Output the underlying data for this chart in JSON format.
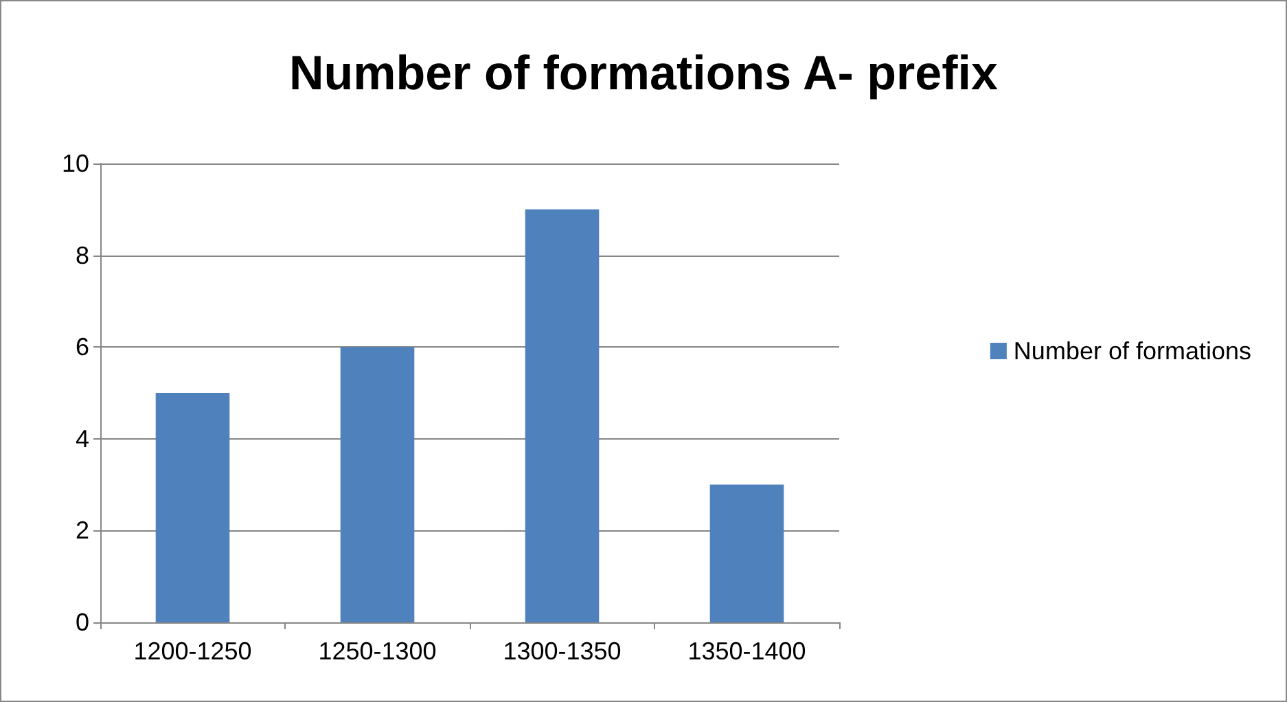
{
  "chart_data": {
    "type": "bar",
    "title": "Number of formations A- prefix",
    "categories": [
      "1200-1250",
      "1250-1300",
      "1300-1350",
      "1350-1400"
    ],
    "series": [
      {
        "name": "Number of formations",
        "color": "#4f81bd",
        "values": [
          5,
          6,
          9,
          3
        ]
      }
    ],
    "ylim": [
      0,
      10
    ],
    "yticks": [
      0,
      2,
      4,
      6,
      8,
      10
    ],
    "grid": "y",
    "legend": "right"
  }
}
